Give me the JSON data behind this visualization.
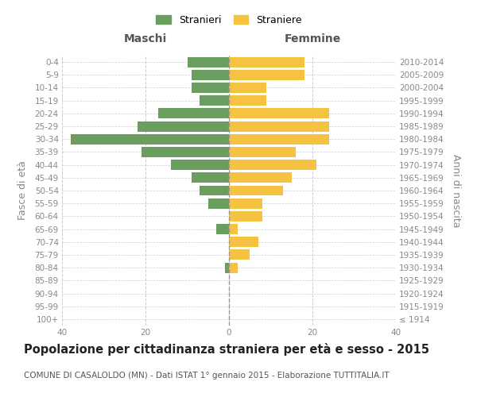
{
  "age_groups": [
    "100+",
    "95-99",
    "90-94",
    "85-89",
    "80-84",
    "75-79",
    "70-74",
    "65-69",
    "60-64",
    "55-59",
    "50-54",
    "45-49",
    "40-44",
    "35-39",
    "30-34",
    "25-29",
    "20-24",
    "15-19",
    "10-14",
    "5-9",
    "0-4"
  ],
  "birth_years": [
    "≤ 1914",
    "1915-1919",
    "1920-1924",
    "1925-1929",
    "1930-1934",
    "1935-1939",
    "1940-1944",
    "1945-1949",
    "1950-1954",
    "1955-1959",
    "1960-1964",
    "1965-1969",
    "1970-1974",
    "1975-1979",
    "1980-1984",
    "1985-1989",
    "1990-1994",
    "1995-1999",
    "2000-2004",
    "2005-2009",
    "2010-2014"
  ],
  "males": [
    0,
    0,
    0,
    0,
    1,
    0,
    0,
    3,
    0,
    5,
    7,
    9,
    14,
    21,
    38,
    22,
    17,
    7,
    9,
    9,
    10
  ],
  "females": [
    0,
    0,
    0,
    0,
    2,
    5,
    7,
    2,
    8,
    8,
    13,
    15,
    21,
    16,
    24,
    24,
    24,
    9,
    9,
    18,
    18
  ],
  "male_color": "#6a9e5f",
  "female_color": "#f5c242",
  "background_color": "#ffffff",
  "grid_color": "#cccccc",
  "title": "Popolazione per cittadinanza straniera per età e sesso - 2015",
  "subtitle": "COMUNE DI CASALOLDO (MN) - Dati ISTAT 1° gennaio 2015 - Elaborazione TUTTITALIA.IT",
  "xlabel_left": "Maschi",
  "xlabel_right": "Femmine",
  "ylabel_left": "Fasce di età",
  "ylabel_right": "Anni di nascita",
  "legend_male": "Stranieri",
  "legend_female": "Straniere",
  "xlim": 40,
  "title_fontsize": 10.5,
  "subtitle_fontsize": 7.5,
  "tick_fontsize": 7.5,
  "label_fontsize": 9
}
